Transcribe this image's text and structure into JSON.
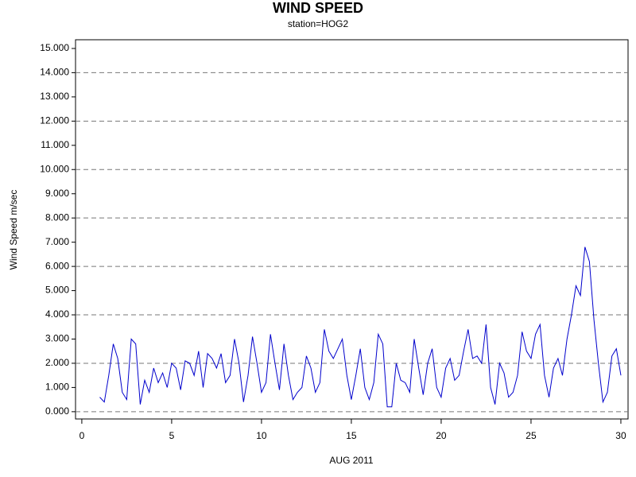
{
  "chart_data": {
    "type": "line",
    "title": "WIND SPEED",
    "subtitle": "station=HOG2",
    "x_label": "AUG 2011",
    "y_label": "Wind Speed m/sec",
    "x": [
      1,
      1.25,
      1.5,
      1.75,
      2,
      2.25,
      2.5,
      2.75,
      3,
      3.25,
      3.5,
      3.75,
      4,
      4.25,
      4.5,
      4.75,
      5,
      5.25,
      5.5,
      5.75,
      6,
      6.25,
      6.5,
      6.75,
      7,
      7.25,
      7.5,
      7.75,
      8,
      8.25,
      8.5,
      8.75,
      9,
      9.25,
      9.5,
      9.75,
      10,
      10.25,
      10.5,
      10.75,
      11,
      11.25,
      11.5,
      11.75,
      12,
      12.25,
      12.5,
      12.75,
      13,
      13.25,
      13.5,
      13.75,
      14,
      14.25,
      14.5,
      14.75,
      15,
      15.25,
      15.5,
      15.75,
      16,
      16.25,
      16.5,
      16.75,
      17,
      17.25,
      17.5,
      17.75,
      18,
      18.25,
      18.5,
      18.75,
      19,
      19.25,
      19.5,
      19.75,
      20,
      20.25,
      20.5,
      20.75,
      21,
      21.25,
      21.5,
      21.75,
      22,
      22.25,
      22.5,
      22.75,
      23,
      23.25,
      23.5,
      23.75,
      24,
      24.25,
      24.5,
      24.75,
      25,
      25.25,
      25.5,
      25.75,
      26,
      26.25,
      26.5,
      26.75,
      27,
      27.25,
      27.5,
      27.75,
      28,
      28.25,
      28.5,
      28.75,
      29,
      29.25,
      29.5,
      29.75,
      30
    ],
    "series": [
      {
        "color": "#0000cc",
        "values": [
          0.6,
          0.4,
          1.5,
          2.8,
          2.2,
          0.8,
          0.5,
          3.0,
          2.8,
          0.3,
          1.3,
          0.8,
          1.8,
          1.2,
          1.6,
          1.0,
          2.0,
          1.8,
          0.9,
          2.1,
          2.0,
          1.5,
          2.5,
          1.0,
          2.4,
          2.2,
          1.8,
          2.4,
          1.2,
          1.5,
          3.0,
          2.0,
          0.4,
          1.5,
          3.1,
          2.0,
          0.8,
          1.2,
          3.2,
          2.0,
          0.9,
          2.8,
          1.5,
          0.5,
          0.8,
          1.0,
          2.3,
          1.8,
          0.8,
          1.2,
          3.4,
          2.5,
          2.2,
          2.6,
          3.0,
          1.5,
          0.5,
          1.5,
          2.6,
          1.0,
          0.5,
          1.2,
          3.2,
          2.8,
          0.2,
          0.2,
          2.0,
          1.3,
          1.2,
          0.8,
          3.0,
          1.8,
          0.7,
          2.0,
          2.6,
          1.0,
          0.6,
          1.8,
          2.2,
          1.3,
          1.5,
          2.5,
          3.4,
          2.2,
          2.3,
          2.0,
          3.6,
          1.0,
          0.3,
          2.0,
          1.6,
          0.6,
          0.8,
          1.5,
          3.3,
          2.5,
          2.2,
          3.2,
          3.6,
          1.5,
          0.6,
          1.8,
          2.2,
          1.5,
          3.0,
          4.0,
          5.2,
          4.8,
          6.8,
          6.2,
          3.8,
          2.0,
          0.4,
          0.8,
          2.3,
          2.6,
          1.5
        ]
      }
    ],
    "xlim": [
      -0.35,
      30.4
    ],
    "xticks": [
      0,
      5,
      10,
      15,
      20,
      25,
      30
    ],
    "ylim": [
      -0.3,
      15.36
    ],
    "yticks": [
      {
        "value": 0,
        "label": "0.000"
      },
      {
        "value": 1,
        "label": "1.000"
      },
      {
        "value": 2,
        "label": "2.000"
      },
      {
        "value": 3,
        "label": "3.000"
      },
      {
        "value": 4,
        "label": "4.000"
      },
      {
        "value": 5,
        "label": "5.000"
      },
      {
        "value": 6,
        "label": "6.000"
      },
      {
        "value": 7,
        "label": "7.000"
      },
      {
        "value": 8,
        "label": "8.000"
      },
      {
        "value": 9,
        "label": "9.000"
      },
      {
        "value": 10,
        "label": "10.000"
      },
      {
        "value": 11,
        "label": "11.000"
      },
      {
        "value": 12,
        "label": "12.000"
      },
      {
        "value": 13,
        "label": "13.000"
      },
      {
        "value": 14,
        "label": "14.000"
      },
      {
        "value": 15,
        "label": "15.000"
      }
    ],
    "grid": true
  }
}
